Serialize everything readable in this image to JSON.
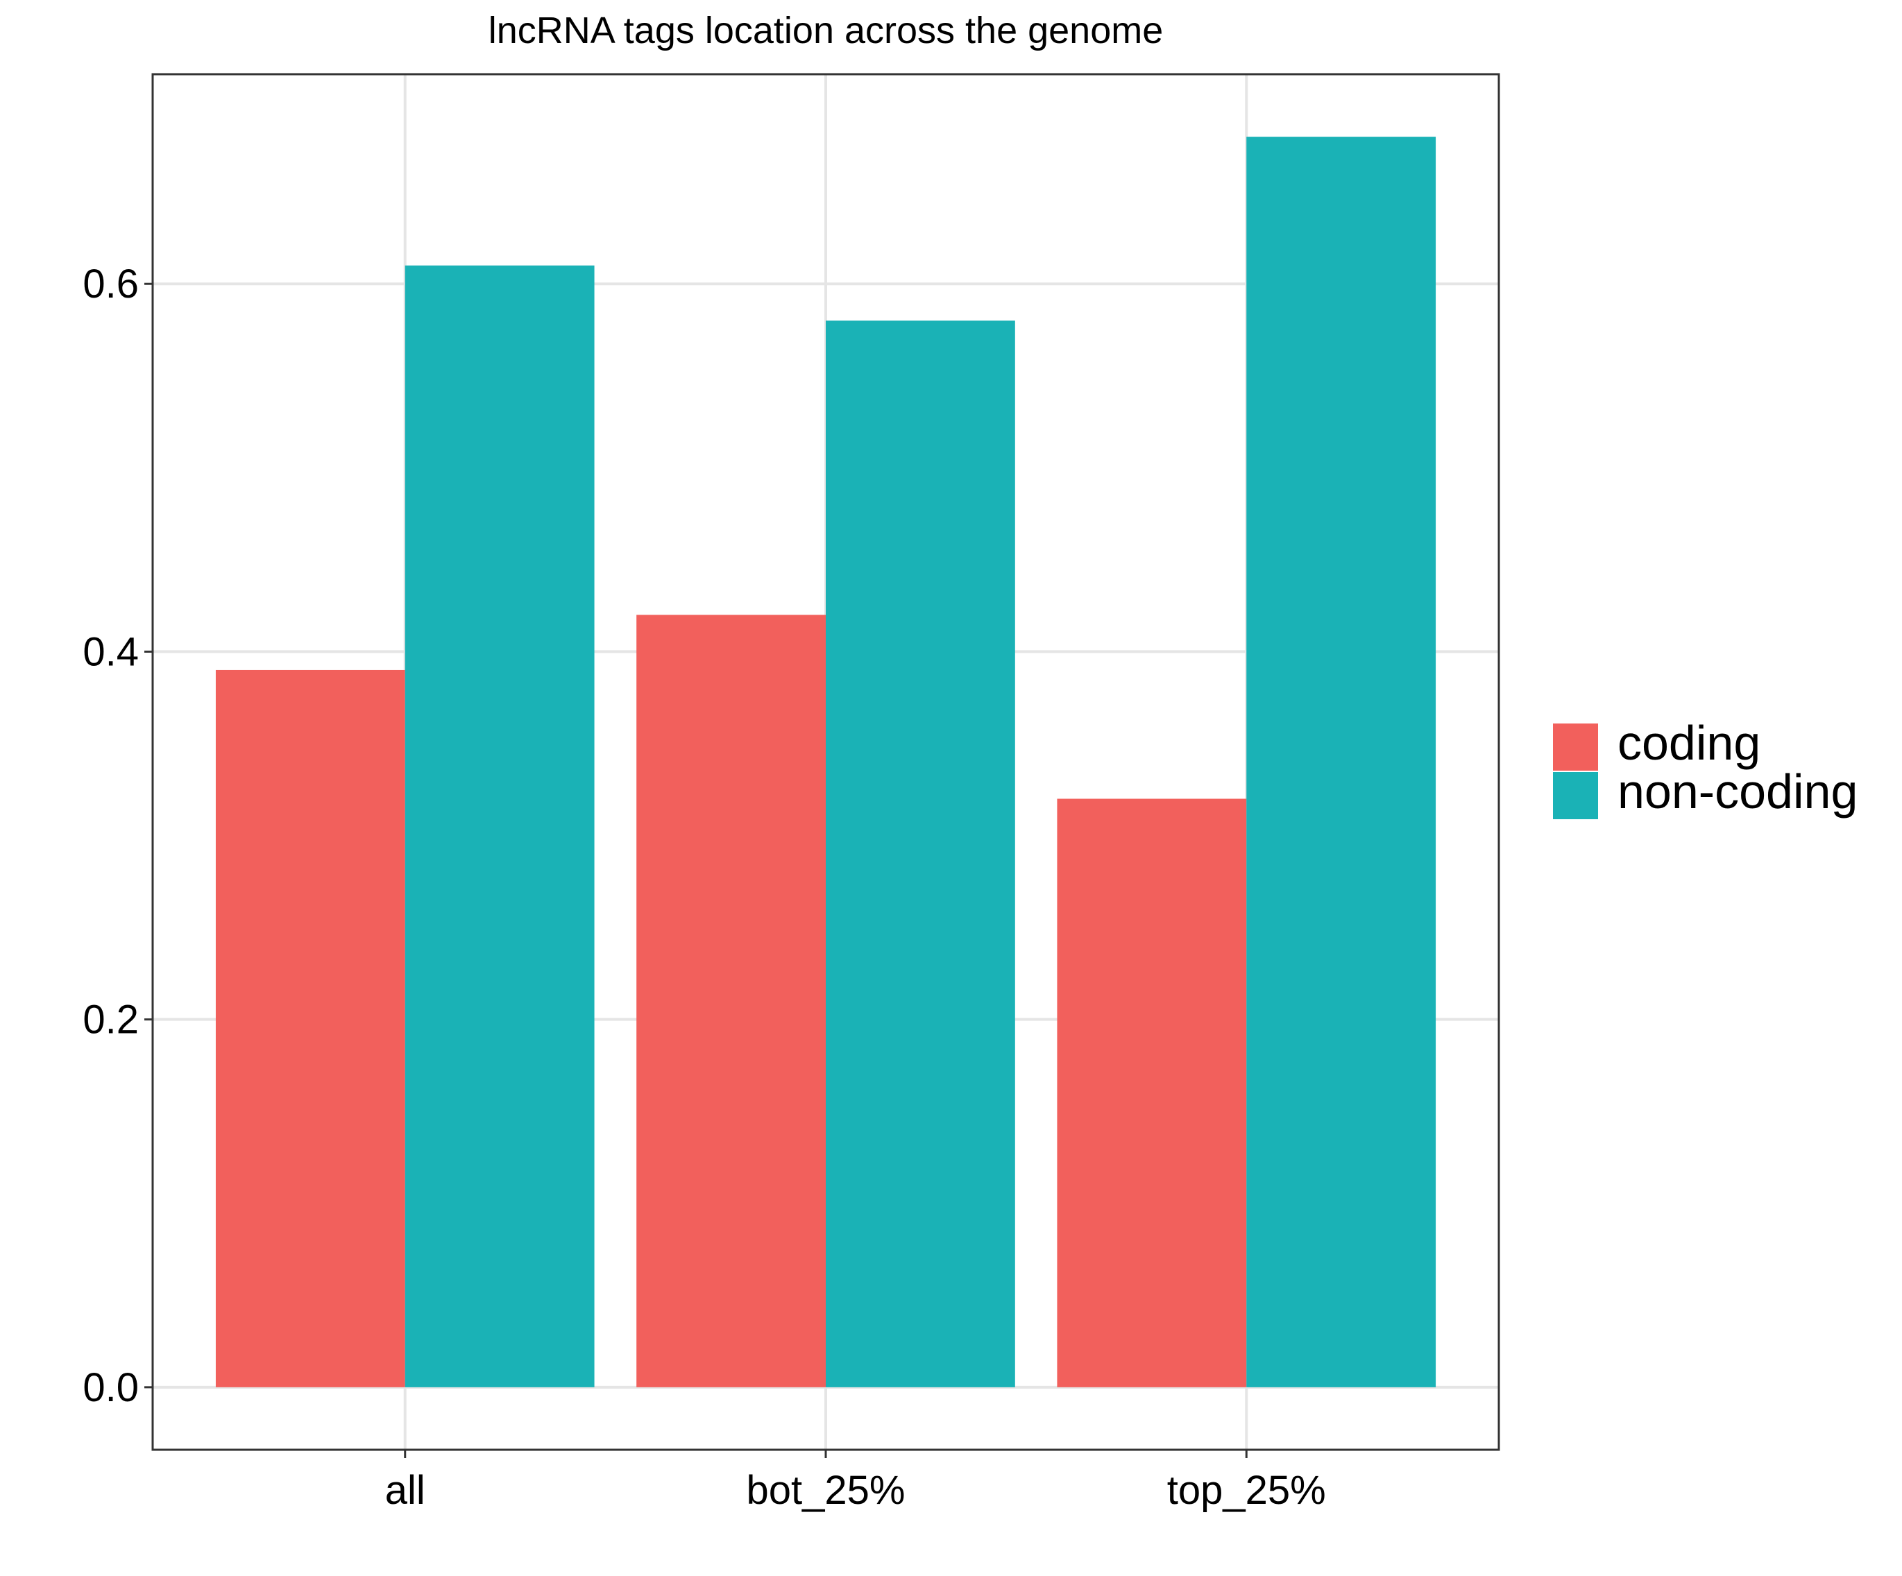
{
  "chart_data": {
    "type": "bar",
    "title": "lncRNA tags location across the genome",
    "xlabel": "",
    "ylabel": "",
    "categories": [
      "all",
      "bot_25%",
      "top_25%"
    ],
    "series": [
      {
        "name": "coding",
        "color": "#F2605C",
        "values": [
          0.39,
          0.42,
          0.32
        ]
      },
      {
        "name": "non-coding",
        "color": "#1AB2B6",
        "values": [
          0.61,
          0.58,
          0.68
        ]
      }
    ],
    "yticks": [
      0.0,
      0.2,
      0.4,
      0.6
    ],
    "ytick_labels": [
      "0.0",
      "0.2",
      "0.4",
      "0.6"
    ],
    "ylim": [
      -0.034,
      0.714
    ],
    "grid": true,
    "legend_position": "right"
  }
}
